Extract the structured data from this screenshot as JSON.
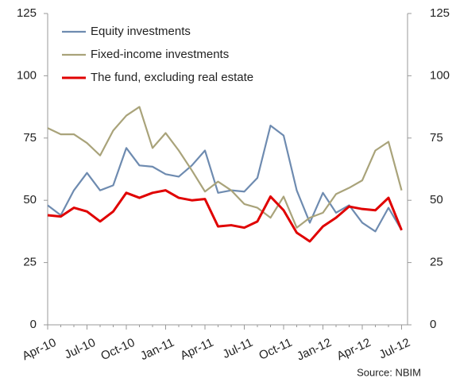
{
  "chart_data": {
    "type": "line",
    "categories": [
      "Apr-10",
      null,
      null,
      "Jul-10",
      null,
      null,
      "Oct-10",
      null,
      null,
      "Jan-11",
      null,
      null,
      "Apr-11",
      null,
      null,
      "Jul-11",
      null,
      null,
      "Oct-11",
      null,
      null,
      "Jan-12",
      null,
      null,
      "Apr-12",
      null,
      null,
      "Jul-12"
    ],
    "series": [
      {
        "name": "Equity investments",
        "color": "#6e8bb0",
        "values": [
          48,
          44,
          54,
          61,
          54,
          56,
          71,
          64,
          63.5,
          60.5,
          59.5,
          64,
          70,
          53,
          54,
          53.5,
          59,
          80,
          76,
          54,
          41,
          53,
          45,
          48,
          41,
          37.5,
          47,
          38
        ]
      },
      {
        "name": "Fixed-income investments",
        "color": "#a9a37a",
        "values": [
          79,
          76.5,
          76.5,
          73,
          68,
          78,
          84,
          87.5,
          71,
          77,
          70,
          62,
          53.5,
          57.5,
          54,
          48.5,
          47,
          43,
          51.5,
          39,
          43,
          45,
          52.5,
          55,
          58,
          70,
          73.5,
          54
        ]
      },
      {
        "name": "The fund, excluding real estate",
        "color": "#e00000",
        "values": [
          44,
          43.5,
          47,
          45.5,
          41.5,
          45.5,
          53,
          51,
          53,
          54,
          51,
          50,
          50.5,
          39.5,
          40,
          39,
          41.5,
          51.5,
          46,
          37,
          33.5,
          39.5,
          43,
          47.5,
          46.5,
          46,
          51,
          38
        ]
      }
    ],
    "ylim": [
      0,
      125
    ],
    "yticks": [
      0,
      25,
      50,
      75,
      100,
      125
    ],
    "y2lim": [
      0,
      125
    ],
    "y2ticks": [
      0,
      25,
      50,
      75,
      100,
      125
    ],
    "legend": "upper left",
    "grid": false,
    "source": "Source: NBIM"
  }
}
